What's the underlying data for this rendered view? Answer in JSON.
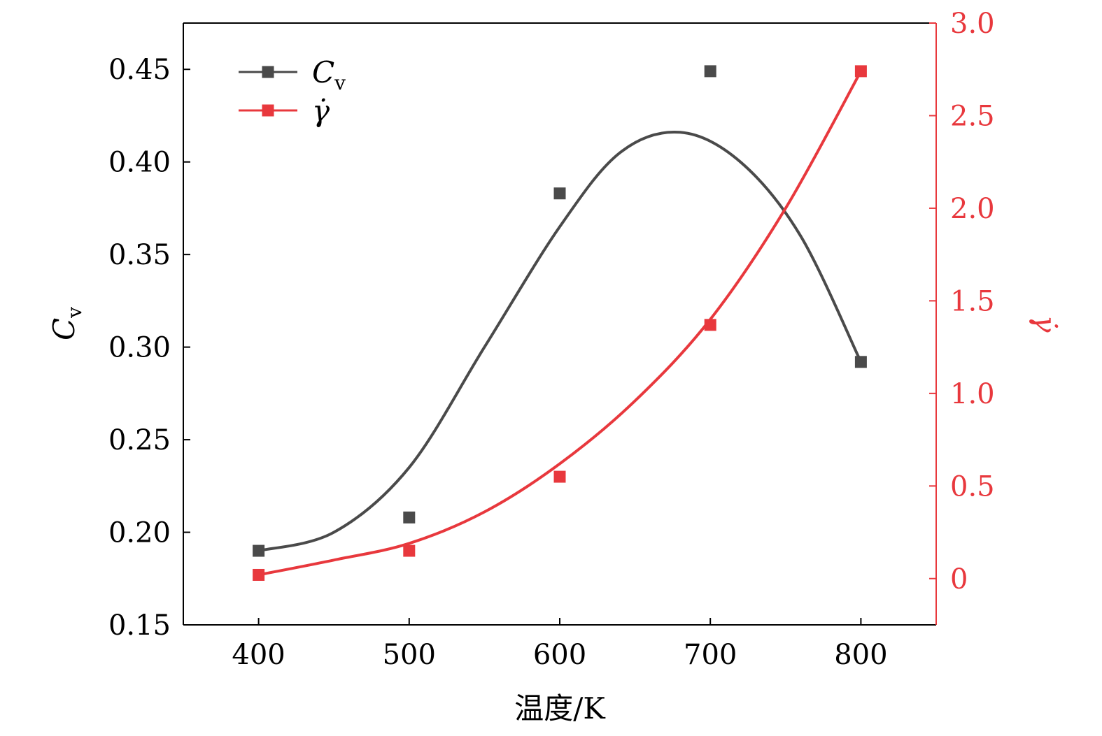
{
  "chart_data": {
    "type": "line",
    "x": [
      400,
      500,
      600,
      700,
      800
    ],
    "xlabel": "温度/K",
    "xlim": [
      350,
      850
    ],
    "xticks": [
      "400",
      "500",
      "600",
      "700",
      "800"
    ],
    "ylabel_left_main": "C",
    "ylabel_left_sub": "v",
    "ylim_left": [
      0.15,
      0.475
    ],
    "yticks_left": [
      "0.15",
      "0.20",
      "0.25",
      "0.30",
      "0.35",
      "0.40",
      "0.45"
    ],
    "ylabel_right": "γ̇",
    "ylim_right": [
      -0.25,
      3.0
    ],
    "yticks_right": [
      "0",
      "0.5",
      "1.0",
      "1.5",
      "2.0",
      "2.5",
      "3.0"
    ],
    "legend_position": "top-left",
    "grid": false,
    "series": [
      {
        "name": "Cv",
        "legend_main": "C",
        "legend_sub": "v",
        "axis": "left",
        "color": "#4a4a4a",
        "values": [
          0.19,
          0.208,
          0.383,
          0.449,
          0.292
        ],
        "fit_x": [
          400,
          450,
          500,
          550,
          600,
          640,
          680,
          720,
          760,
          800
        ],
        "fit_y": [
          0.19,
          0.2,
          0.235,
          0.3,
          0.365,
          0.405,
          0.416,
          0.4,
          0.36,
          0.292
        ]
      },
      {
        "name": "γ̇",
        "legend_main": "γ̇",
        "axis": "right",
        "color": "#e8383d",
        "values": [
          0.02,
          0.15,
          0.55,
          1.37,
          2.74
        ],
        "fit_x": [
          400,
          450,
          500,
          550,
          600,
          650,
          700,
          750,
          800
        ],
        "fit_y": [
          0.02,
          0.1,
          0.19,
          0.36,
          0.62,
          0.96,
          1.4,
          2.0,
          2.74
        ]
      }
    ]
  }
}
